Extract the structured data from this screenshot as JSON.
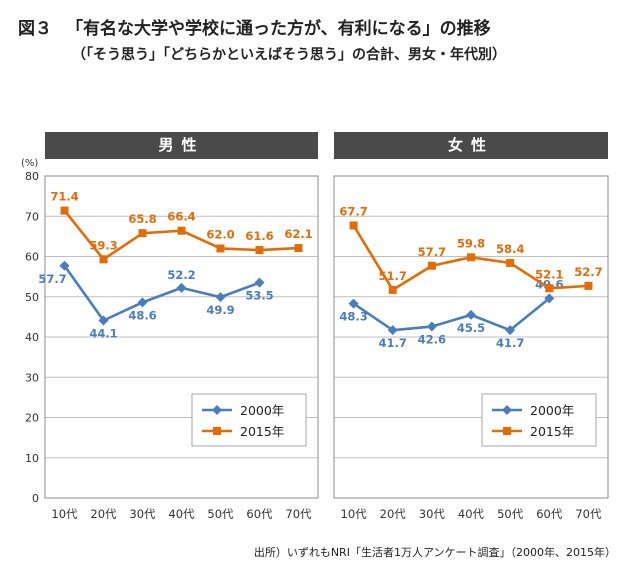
{
  "figure_label": "図３",
  "title": "「有名な大学や学校に通った方が、有利になる」の推移",
  "subtitle": "（「そう思う」「どちらかといえばそう思う」の合計、男女・年代別）",
  "source": "出所）いずれもNRI「生活者1万人アンケート調査」（2000年、2015年）",
  "colors": {
    "series_2000": "#4a7ebb",
    "series_2015": "#e36c09",
    "header_bg": "#4a4a4a",
    "grid": "#bfbfbf"
  },
  "chart_data": [
    {
      "type": "line",
      "title": "男性",
      "ylabel": "(%)",
      "ylim": [
        0,
        80
      ],
      "yticks": [
        0,
        10,
        20,
        30,
        40,
        50,
        60,
        70,
        80
      ],
      "grid": true,
      "legend": "bottom-right",
      "categories": [
        "10代",
        "20代",
        "30代",
        "40代",
        "50代",
        "60代",
        "70代"
      ],
      "series": [
        {
          "name": "2000年",
          "marker": "diamond",
          "values": [
            57.7,
            44.1,
            48.6,
            52.2,
            49.9,
            53.5,
            null
          ],
          "labels": [
            "57.7",
            "44.1",
            "48.6",
            "52.2",
            "49.9",
            "53.5",
            ""
          ]
        },
        {
          "name": "2015年",
          "marker": "square",
          "values": [
            71.4,
            59.3,
            65.8,
            66.4,
            62.0,
            61.6,
            62.1
          ],
          "labels": [
            "71.4",
            "59.3",
            "65.8",
            "66.4",
            "62.0",
            "61.6",
            "62.1"
          ]
        }
      ]
    },
    {
      "type": "line",
      "title": "女性",
      "ylim": [
        0,
        80
      ],
      "grid": true,
      "legend": "bottom-right",
      "categories": [
        "10代",
        "20代",
        "30代",
        "40代",
        "50代",
        "60代",
        "70代"
      ],
      "series": [
        {
          "name": "2000年",
          "marker": "diamond",
          "values": [
            48.3,
            41.7,
            42.6,
            45.5,
            41.7,
            49.6,
            null
          ],
          "labels": [
            "48.3",
            "41.7",
            "42.6",
            "45.5",
            "41.7",
            "49.6",
            ""
          ]
        },
        {
          "name": "2015年",
          "marker": "square",
          "values": [
            67.7,
            51.7,
            57.7,
            59.8,
            58.4,
            52.1,
            52.7
          ],
          "labels": [
            "67.7",
            "51.7",
            "57.7",
            "59.8",
            "58.4",
            "52.1",
            "52.7"
          ]
        }
      ]
    }
  ]
}
